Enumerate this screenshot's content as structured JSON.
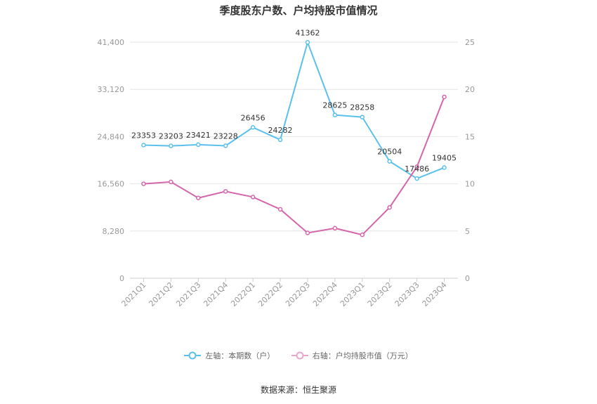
{
  "chart_data": {
    "type": "line",
    "title": "季度股东户数、户均持股市值情况",
    "categories": [
      "2021Q1",
      "2021Q2",
      "2021Q3",
      "2021Q4",
      "2022Q1",
      "2022Q2",
      "2022Q3",
      "2022Q4",
      "2023Q1",
      "2023Q2",
      "2023Q3",
      "2023Q4"
    ],
    "y_left": {
      "ylim": [
        0,
        41400
      ],
      "ticks": [
        "0",
        "8,280",
        "16,560",
        "24,840",
        "33,120",
        "41,400"
      ],
      "tick_values": [
        0,
        8280,
        16560,
        24840,
        33120,
        41400
      ]
    },
    "y_right": {
      "ylim": [
        0,
        25
      ],
      "ticks": [
        "0",
        "5",
        "10",
        "15",
        "20",
        "25"
      ],
      "tick_values": [
        0,
        5,
        10,
        15,
        20,
        25
      ]
    },
    "series": [
      {
        "name": "左轴：本期数（户）",
        "axis": "left",
        "color": "#5bc0eb",
        "values": [
          23353,
          23203,
          23421,
          23228,
          26456,
          24282,
          41362,
          28625,
          28258,
          20504,
          17486,
          19405
        ],
        "labels": [
          "23353",
          "23203",
          "23421",
          "23228",
          "26456",
          "24282",
          "41362",
          "28625",
          "28258",
          "20504",
          "17486",
          "19405"
        ]
      },
      {
        "name": "右轴：户均持股市值（万元）",
        "axis": "right",
        "color": "#d466ab",
        "values": [
          10.0,
          10.2,
          8.5,
          9.2,
          8.6,
          7.3,
          4.8,
          5.3,
          4.6,
          7.5,
          11.8,
          19.2
        ]
      }
    ],
    "legend_position": "bottom",
    "grid": true
  },
  "source": "数据来源：恒生聚源"
}
